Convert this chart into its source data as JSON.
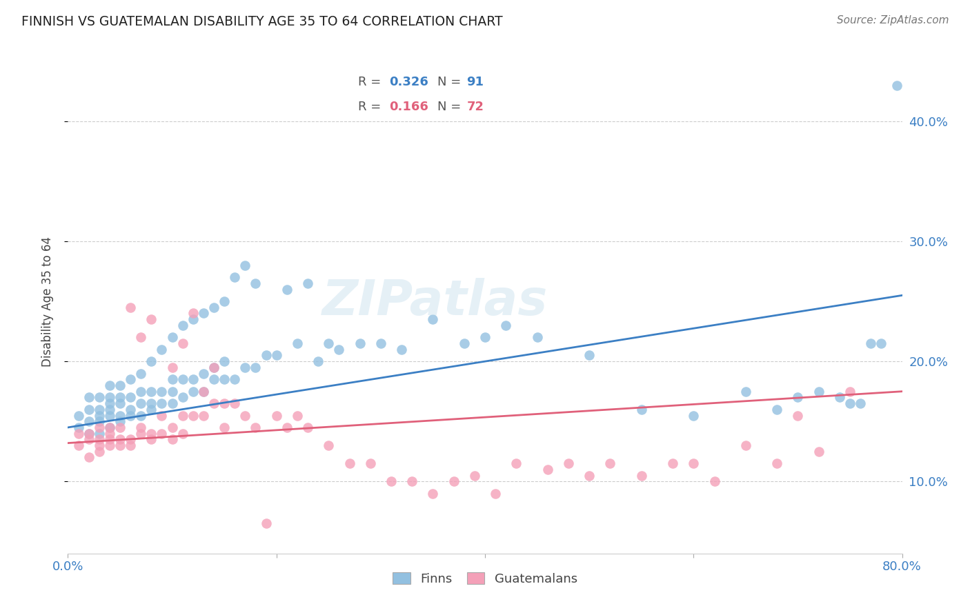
{
  "title": "FINNISH VS GUATEMALAN DISABILITY AGE 35 TO 64 CORRELATION CHART",
  "source": "Source: ZipAtlas.com",
  "ylabel": "Disability Age 35 to 64",
  "ytick_labels": [
    "10.0%",
    "20.0%",
    "30.0%",
    "40.0%"
  ],
  "ytick_values": [
    0.1,
    0.2,
    0.3,
    0.4
  ],
  "xlim": [
    0.0,
    0.8
  ],
  "ylim": [
    0.04,
    0.46
  ],
  "legend_blue_R": "0.326",
  "legend_blue_N": "91",
  "legend_pink_R": "0.166",
  "legend_pink_N": "72",
  "blue_color": "#92c0e0",
  "pink_color": "#f4a0b8",
  "blue_line_color": "#3b7fc4",
  "pink_line_color": "#e0607a",
  "watermark": "ZIPatlas",
  "blue_line_x0": 0.0,
  "blue_line_y0": 0.145,
  "blue_line_x1": 0.8,
  "blue_line_y1": 0.255,
  "pink_line_x0": 0.0,
  "pink_line_y0": 0.132,
  "pink_line_x1": 0.8,
  "pink_line_y1": 0.175,
  "blue_x": [
    0.01,
    0.01,
    0.02,
    0.02,
    0.02,
    0.02,
    0.03,
    0.03,
    0.03,
    0.03,
    0.03,
    0.04,
    0.04,
    0.04,
    0.04,
    0.04,
    0.04,
    0.05,
    0.05,
    0.05,
    0.05,
    0.05,
    0.06,
    0.06,
    0.06,
    0.06,
    0.07,
    0.07,
    0.07,
    0.07,
    0.08,
    0.08,
    0.08,
    0.08,
    0.09,
    0.09,
    0.09,
    0.1,
    0.1,
    0.1,
    0.1,
    0.11,
    0.11,
    0.11,
    0.12,
    0.12,
    0.12,
    0.13,
    0.13,
    0.13,
    0.14,
    0.14,
    0.14,
    0.15,
    0.15,
    0.15,
    0.16,
    0.16,
    0.17,
    0.17,
    0.18,
    0.18,
    0.19,
    0.2,
    0.21,
    0.22,
    0.23,
    0.24,
    0.25,
    0.26,
    0.28,
    0.3,
    0.32,
    0.35,
    0.38,
    0.4,
    0.42,
    0.45,
    0.5,
    0.55,
    0.6,
    0.65,
    0.68,
    0.7,
    0.72,
    0.74,
    0.75,
    0.76,
    0.77,
    0.78,
    0.795
  ],
  "blue_y": [
    0.145,
    0.155,
    0.14,
    0.15,
    0.16,
    0.17,
    0.14,
    0.15,
    0.155,
    0.16,
    0.17,
    0.145,
    0.155,
    0.16,
    0.165,
    0.17,
    0.18,
    0.15,
    0.155,
    0.165,
    0.17,
    0.18,
    0.155,
    0.16,
    0.17,
    0.185,
    0.155,
    0.165,
    0.175,
    0.19,
    0.16,
    0.165,
    0.175,
    0.2,
    0.165,
    0.175,
    0.21,
    0.165,
    0.175,
    0.185,
    0.22,
    0.17,
    0.185,
    0.23,
    0.175,
    0.185,
    0.235,
    0.175,
    0.19,
    0.24,
    0.185,
    0.195,
    0.245,
    0.185,
    0.2,
    0.25,
    0.185,
    0.27,
    0.195,
    0.28,
    0.195,
    0.265,
    0.205,
    0.205,
    0.26,
    0.215,
    0.265,
    0.2,
    0.215,
    0.21,
    0.215,
    0.215,
    0.21,
    0.235,
    0.215,
    0.22,
    0.23,
    0.22,
    0.205,
    0.16,
    0.155,
    0.175,
    0.16,
    0.17,
    0.175,
    0.17,
    0.165,
    0.165,
    0.215,
    0.215,
    0.43
  ],
  "pink_x": [
    0.01,
    0.01,
    0.02,
    0.02,
    0.02,
    0.03,
    0.03,
    0.03,
    0.03,
    0.04,
    0.04,
    0.04,
    0.04,
    0.05,
    0.05,
    0.05,
    0.06,
    0.06,
    0.06,
    0.07,
    0.07,
    0.07,
    0.08,
    0.08,
    0.08,
    0.09,
    0.09,
    0.1,
    0.1,
    0.1,
    0.11,
    0.11,
    0.11,
    0.12,
    0.12,
    0.13,
    0.13,
    0.14,
    0.14,
    0.15,
    0.15,
    0.16,
    0.17,
    0.18,
    0.19,
    0.2,
    0.21,
    0.22,
    0.23,
    0.25,
    0.27,
    0.29,
    0.31,
    0.33,
    0.35,
    0.37,
    0.39,
    0.41,
    0.43,
    0.46,
    0.48,
    0.5,
    0.52,
    0.55,
    0.58,
    0.6,
    0.62,
    0.65,
    0.68,
    0.7,
    0.72,
    0.75
  ],
  "pink_y": [
    0.13,
    0.14,
    0.12,
    0.135,
    0.14,
    0.125,
    0.13,
    0.135,
    0.145,
    0.13,
    0.135,
    0.14,
    0.145,
    0.13,
    0.135,
    0.145,
    0.13,
    0.135,
    0.245,
    0.14,
    0.145,
    0.22,
    0.135,
    0.14,
    0.235,
    0.14,
    0.155,
    0.135,
    0.145,
    0.195,
    0.14,
    0.155,
    0.215,
    0.155,
    0.24,
    0.155,
    0.175,
    0.165,
    0.195,
    0.165,
    0.145,
    0.165,
    0.155,
    0.145,
    0.065,
    0.155,
    0.145,
    0.155,
    0.145,
    0.13,
    0.115,
    0.115,
    0.1,
    0.1,
    0.09,
    0.1,
    0.105,
    0.09,
    0.115,
    0.11,
    0.115,
    0.105,
    0.115,
    0.105,
    0.115,
    0.115,
    0.1,
    0.13,
    0.115,
    0.155,
    0.125,
    0.175
  ]
}
